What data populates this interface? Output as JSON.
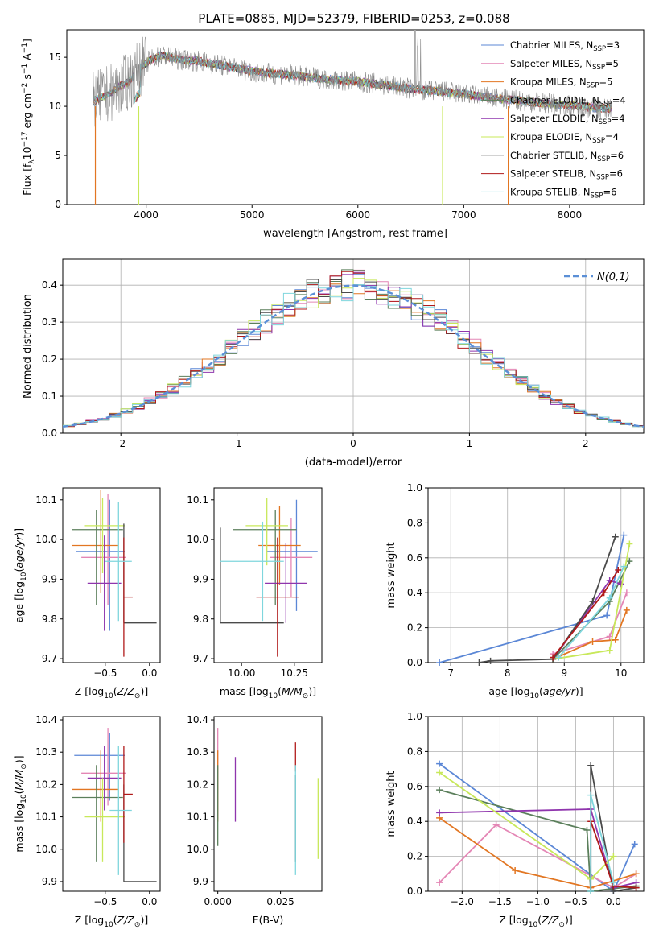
{
  "figure_title": "PLATE=0885, MJD=52379, FIBERID=0253, z=0.088",
  "colors": {
    "chabrier_miles": "#5b87d6",
    "salpeter_miles": "#e486b5",
    "kroupa_miles": "#e27622",
    "chabrier_elodie": "#5b7f5b",
    "salpeter_elodie": "#8f35ad",
    "kroupa_elodie": "#c8e85a",
    "chabrier_stelib": "#4a4a4a",
    "salpeter_stelib": "#b01a1a",
    "kroupa_stelib": "#7fd6dd",
    "data": "#888888",
    "normal": "#5b8fd6"
  },
  "chart_data": [
    {
      "id": "spectrum",
      "type": "line",
      "title": "PLATE=0885, MJD=52379, FIBERID=0253, z=0.088",
      "xlabel": "wavelength [Angstrom, rest frame]",
      "ylabel": "Flux [f_λ 10^-17 erg cm^-2 s^-1 A^-1]",
      "xlim": [
        3250,
        8700
      ],
      "ylim": [
        0,
        17.8
      ],
      "xticks": [
        4000,
        5000,
        6000,
        7000,
        8000
      ],
      "yticks": [
        0,
        5,
        10,
        15
      ],
      "legend_position": "top-right",
      "continuum": {
        "x": [
          3500,
          3600,
          3750,
          3850,
          3950,
          4050,
          4150,
          4300,
          4500,
          4700,
          4900,
          5100,
          5300,
          5500,
          5700,
          5900,
          6100,
          6300,
          6500,
          6700,
          6900,
          7100,
          7300,
          7500,
          7700,
          7900,
          8100,
          8300
        ],
        "y": [
          10.5,
          11.0,
          12.0,
          12.6,
          14.0,
          14.8,
          15.2,
          14.8,
          14.6,
          14.2,
          13.8,
          13.4,
          13.3,
          13.0,
          12.8,
          12.6,
          12.4,
          12.1,
          11.8,
          11.6,
          11.4,
          11.1,
          10.8,
          10.6,
          10.4,
          10.2,
          10.0,
          9.8
        ]
      },
      "legend": [
        {
          "key": "chabrier_miles",
          "label": "Chabrier MILES, N",
          "sub": "SSP",
          "count": "=3"
        },
        {
          "key": "salpeter_miles",
          "label": "Salpeter MILES, N",
          "sub": "SSP",
          "count": "=5"
        },
        {
          "key": "kroupa_miles",
          "label": "Kroupa MILES, N",
          "sub": "SSP",
          "count": "=5"
        },
        {
          "key": "chabrier_elodie",
          "label": "Chabrier ELODIE, N",
          "sub": "SSP",
          "count": "=4"
        },
        {
          "key": "salpeter_elodie",
          "label": "Salpeter ELODIE, N",
          "sub": "SSP",
          "count": "=4"
        },
        {
          "key": "kroupa_elodie",
          "label": "Kroupa ELODIE, N",
          "sub": "SSP",
          "count": "=4"
        },
        {
          "key": "chabrier_stelib",
          "label": "Chabrier STELIB, N",
          "sub": "SSP",
          "count": "=6"
        },
        {
          "key": "salpeter_stelib",
          "label": "Salpeter STELIB, N",
          "sub": "SSP",
          "count": "=6"
        },
        {
          "key": "kroupa_stelib",
          "label": "Kroupa STELIB, N",
          "sub": "SSP",
          "count": "=6"
        }
      ]
    },
    {
      "id": "residuals",
      "type": "histogram",
      "xlabel": "(data-model)/error",
      "ylabel": "Normed distribution",
      "xlim": [
        -2.5,
        2.5
      ],
      "ylim": [
        0,
        0.47
      ],
      "xticks": [
        -2,
        -1,
        0,
        1,
        2
      ],
      "yticks": [
        0.0,
        0.1,
        0.2,
        0.3,
        0.4
      ],
      "grid": true,
      "legend_label": "N(0,1)",
      "legend_position": "top-right",
      "bin_width": 0.1,
      "series_order": [
        "chabrier_miles",
        "salpeter_miles",
        "kroupa_miles",
        "chabrier_elodie",
        "salpeter_elodie",
        "kroupa_elodie",
        "chabrier_stelib",
        "salpeter_stelib",
        "kroupa_stelib"
      ]
    },
    {
      "id": "age_vs_Z",
      "type": "errorbar",
      "xlabel": "Z [log10(Z/Z⊙)]",
      "ylabel": "age  [log10(age/yr)]",
      "xlim": [
        -0.98,
        0.12
      ],
      "ylim": [
        9.69,
        10.13
      ],
      "xticks": [
        -0.5,
        0.0
      ],
      "xtick_labels": [
        "−0.5",
        "0.0"
      ],
      "yticks": [
        9.7,
        9.8,
        9.9,
        10.0,
        10.1
      ],
      "points": [
        {
          "key": "chabrier_miles",
          "x": -0.45,
          "xerr": [
            0.38,
            0.17
          ],
          "y": 9.97,
          "yerr": [
            0.2,
            0.13
          ]
        },
        {
          "key": "salpeter_miles",
          "x": -0.47,
          "xerr": [
            0.3,
            0.2
          ],
          "y": 9.955,
          "yerr": [
            0.12,
            0.16
          ]
        },
        {
          "key": "kroupa_miles",
          "x": -0.55,
          "xerr": [
            0.33,
            0.2
          ],
          "y": 9.985,
          "yerr": [
            0.12,
            0.14
          ]
        },
        {
          "key": "chabrier_elodie",
          "x": -0.6,
          "xerr": [
            0.28,
            0.3
          ],
          "y": 10.025,
          "yerr": [
            0.19,
            0.05
          ]
        },
        {
          "key": "salpeter_elodie",
          "x": -0.51,
          "xerr": [
            0.19,
            0.19
          ],
          "y": 9.89,
          "yerr": [
            0.12,
            0.12
          ]
        },
        {
          "key": "kroupa_elodie",
          "x": -0.53,
          "xerr": [
            0.2,
            0.25
          ],
          "y": 10.035,
          "yerr": [
            0.12,
            0.07
          ]
        },
        {
          "key": "chabrier_stelib",
          "x": -0.29,
          "xerr": [
            0.0,
            0.37
          ],
          "y": 9.79,
          "yerr": [
            0.0,
            0.25
          ]
        },
        {
          "key": "salpeter_stelib",
          "x": -0.29,
          "xerr": [
            0.0,
            0.1
          ],
          "y": 9.855,
          "yerr": [
            0.15,
            0.15
          ]
        },
        {
          "key": "kroupa_stelib",
          "x": -0.35,
          "xerr": [
            0.15,
            0.15
          ],
          "y": 9.945,
          "yerr": [
            0.15,
            0.15
          ]
        }
      ]
    },
    {
      "id": "age_vs_mass",
      "type": "errorbar",
      "xlabel": "mass [log10(M/M⊙)]",
      "ylabel": "",
      "xlim": [
        9.87,
        10.38
      ],
      "ylim": [
        9.69,
        10.13
      ],
      "xticks": [
        10.0,
        10.25
      ],
      "xtick_labels": [
        "10.00",
        "10.25"
      ],
      "yticks": [
        9.7,
        9.8,
        9.9,
        10.0,
        10.1
      ],
      "points": [
        {
          "key": "chabrier_miles",
          "x": 10.26,
          "xerr": [
            0.14,
            0.1
          ],
          "y": 9.97,
          "yerr": [
            0.15,
            0.13
          ]
        },
        {
          "key": "salpeter_miles",
          "x": 10.235,
          "xerr": [
            0.1,
            0.1
          ],
          "y": 9.955,
          "yerr": [
            0.1,
            0.1
          ]
        },
        {
          "key": "kroupa_miles",
          "x": 10.18,
          "xerr": [
            0.1,
            0.1
          ],
          "y": 9.985,
          "yerr": [
            0.1,
            0.1
          ]
        },
        {
          "key": "chabrier_elodie",
          "x": 10.16,
          "xerr": [
            0.2,
            0.1
          ],
          "y": 10.025,
          "yerr": [
            0.19,
            0.05
          ]
        },
        {
          "key": "salpeter_elodie",
          "x": 10.21,
          "xerr": [
            0.1,
            0.1
          ],
          "y": 9.89,
          "yerr": [
            0.1,
            0.1
          ]
        },
        {
          "key": "kroupa_elodie",
          "x": 10.12,
          "xerr": [
            0.1,
            0.1
          ],
          "y": 10.035,
          "yerr": [
            0.1,
            0.07
          ]
        },
        {
          "key": "chabrier_stelib",
          "x": 9.9,
          "xerr": [
            0.0,
            0.3
          ],
          "y": 9.79,
          "yerr": [
            0.0,
            0.24
          ]
        },
        {
          "key": "salpeter_stelib",
          "x": 10.17,
          "xerr": [
            0.1,
            0.1
          ],
          "y": 9.855,
          "yerr": [
            0.15,
            0.15
          ]
        },
        {
          "key": "kroupa_stelib",
          "x": 10.1,
          "xerr": [
            0.2,
            0.1
          ],
          "y": 9.945,
          "yerr": [
            0.15,
            0.1
          ]
        }
      ]
    },
    {
      "id": "massweight_vs_age",
      "type": "line",
      "xlabel": "age  [log10(age/yr)]",
      "ylabel": "mass weight",
      "xlim": [
        6.6,
        10.4
      ],
      "ylim": [
        0.0,
        1.0
      ],
      "xticks": [
        7,
        8,
        9,
        10
      ],
      "yticks": [
        0.0,
        0.2,
        0.4,
        0.6,
        0.8,
        1.0
      ],
      "grid": true,
      "series": [
        {
          "key": "chabrier_miles",
          "x": [
            6.8,
            9.75,
            10.05
          ],
          "y": [
            0.0,
            0.27,
            0.73
          ]
        },
        {
          "key": "salpeter_miles",
          "x": [
            8.8,
            9.8,
            10.1
          ],
          "y": [
            0.05,
            0.15,
            0.4
          ]
        },
        {
          "key": "kroupa_miles",
          "x": [
            8.8,
            9.5,
            9.9,
            10.1
          ],
          "y": [
            0.02,
            0.12,
            0.13,
            0.3
          ]
        },
        {
          "key": "chabrier_elodie",
          "x": [
            8.8,
            9.8,
            10.15
          ],
          "y": [
            0.02,
            0.35,
            0.58
          ]
        },
        {
          "key": "salpeter_elodie",
          "x": [
            8.8,
            9.8,
            10.0
          ],
          "y": [
            0.02,
            0.47,
            0.45
          ]
        },
        {
          "key": "kroupa_elodie",
          "x": [
            8.8,
            9.8,
            10.15
          ],
          "y": [
            0.02,
            0.07,
            0.68
          ]
        },
        {
          "key": "chabrier_stelib",
          "x": [
            7.5,
            7.7,
            8.8,
            9.5,
            9.9
          ],
          "y": [
            0.0,
            0.01,
            0.02,
            0.35,
            0.72
          ]
        },
        {
          "key": "salpeter_stelib",
          "x": [
            8.8,
            9.7,
            9.95
          ],
          "y": [
            0.03,
            0.4,
            0.53
          ]
        },
        {
          "key": "kroupa_stelib",
          "x": [
            8.9,
            9.8,
            10.05
          ],
          "y": [
            0.03,
            0.37,
            0.55
          ]
        }
      ]
    },
    {
      "id": "mass_vs_Z",
      "type": "errorbar",
      "xlabel": "Z [log10(Z/Z⊙)]",
      "ylabel": "mass [log10(M/M⊙)]",
      "xlim": [
        -0.98,
        0.12
      ],
      "ylim": [
        9.87,
        10.41
      ],
      "xticks": [
        -0.5,
        0.0
      ],
      "xtick_labels": [
        "−0.5",
        "0.0"
      ],
      "yticks": [
        9.9,
        10.0,
        10.1,
        10.2,
        10.3,
        10.4
      ],
      "points": [
        {
          "key": "chabrier_miles",
          "x": -0.45,
          "xerr": [
            0.4,
            0.17
          ],
          "y": 10.29,
          "yerr": [
            0.14,
            0.07
          ]
        },
        {
          "key": "salpeter_miles",
          "x": -0.47,
          "xerr": [
            0.3,
            0.2
          ],
          "y": 10.235,
          "yerr": [
            0.1,
            0.14
          ]
        },
        {
          "key": "kroupa_miles",
          "x": -0.55,
          "xerr": [
            0.33,
            0.2
          ],
          "y": 10.185,
          "yerr": [
            0.1,
            0.12
          ]
        },
        {
          "key": "chabrier_elodie",
          "x": -0.6,
          "xerr": [
            0.28,
            0.3
          ],
          "y": 10.16,
          "yerr": [
            0.2,
            0.1
          ]
        },
        {
          "key": "salpeter_elodie",
          "x": -0.51,
          "xerr": [
            0.19,
            0.19
          ],
          "y": 10.22,
          "yerr": [
            0.1,
            0.1
          ]
        },
        {
          "key": "kroupa_elodie",
          "x": -0.53,
          "xerr": [
            0.2,
            0.25
          ],
          "y": 10.1,
          "yerr": [
            0.14,
            0.12
          ]
        },
        {
          "key": "chabrier_stelib",
          "x": -0.29,
          "xerr": [
            0.0,
            0.37
          ],
          "y": 9.9,
          "yerr": [
            0.0,
            0.3
          ]
        },
        {
          "key": "salpeter_stelib",
          "x": -0.29,
          "xerr": [
            0.0,
            0.1
          ],
          "y": 10.17,
          "yerr": [
            0.15,
            0.15
          ]
        },
        {
          "key": "kroupa_stelib",
          "x": -0.35,
          "xerr": [
            0.1,
            0.15
          ],
          "y": 10.12,
          "yerr": [
            0.2,
            0.2
          ]
        }
      ]
    },
    {
      "id": "mass_vs_ebv",
      "type": "errorbar",
      "xlabel": "E(B-V)",
      "ylabel": "",
      "xlim": [
        -0.0015,
        0.0415
      ],
      "ylim": [
        9.87,
        10.41
      ],
      "xticks": [
        0.0,
        0.025
      ],
      "xtick_labels": [
        "0.000",
        "0.025"
      ],
      "yticks": [
        9.9,
        10.0,
        10.1,
        10.2,
        10.3,
        10.4
      ],
      "points": [
        {
          "key": "salpeter_miles",
          "x": 0.0,
          "y": 10.235,
          "yerr": [
            0.14,
            0.14
          ]
        },
        {
          "key": "kroupa_miles",
          "x": 0.0,
          "y": 10.185,
          "yerr": [
            0.1,
            0.12
          ]
        },
        {
          "key": "chabrier_elodie",
          "x": 0.0,
          "y": 10.16,
          "yerr": [
            0.15,
            0.1
          ]
        },
        {
          "key": "salpeter_elodie",
          "x": 0.007,
          "y": 10.185,
          "yerr": [
            0.1,
            0.1
          ]
        },
        {
          "key": "kroupa_elodie",
          "x": 0.04,
          "y": 10.12,
          "yerr": [
            0.15,
            0.1
          ]
        },
        {
          "key": "chabrier_stelib",
          "x": 0.031,
          "y": 10.1,
          "yerr": [
            0.14,
            0.13
          ]
        },
        {
          "key": "salpeter_stelib",
          "x": 0.031,
          "y": 10.24,
          "yerr": [
            0.0,
            0.09
          ]
        },
        {
          "key": "kroupa_stelib",
          "x": 0.031,
          "y": 10.12,
          "yerr": [
            0.2,
            0.14
          ]
        }
      ]
    },
    {
      "id": "massweight_vs_Z",
      "type": "line",
      "xlabel": "Z [log10(Z/Z⊙)]",
      "ylabel": "mass weight",
      "xlim": [
        -2.45,
        0.4
      ],
      "ylim": [
        0.0,
        1.0
      ],
      "xticks": [
        -2.0,
        -1.5,
        -1.0,
        -0.5,
        0.0
      ],
      "xtick_labels": [
        "−2.0",
        "−1.5",
        "−1.0",
        "−0.5",
        "0.0"
      ],
      "yticks": [
        0.0,
        0.2,
        0.4,
        0.6,
        0.8,
        1.0
      ],
      "grid": true,
      "series": [
        {
          "key": "chabrier_miles",
          "x": [
            -2.3,
            0.0,
            0.28
          ],
          "y": [
            0.73,
            0.0,
            0.27
          ]
        },
        {
          "key": "salpeter_miles",
          "x": [
            -2.3,
            -1.55,
            0.0,
            0.3
          ],
          "y": [
            0.05,
            0.38,
            0.02,
            0.1
          ]
        },
        {
          "key": "kroupa_miles",
          "x": [
            -2.3,
            -1.3,
            -0.3,
            0.3
          ],
          "y": [
            0.42,
            0.12,
            0.02,
            0.1
          ]
        },
        {
          "key": "chabrier_elodie",
          "x": [
            -2.3,
            -0.35,
            -0.3,
            0.3
          ],
          "y": [
            0.58,
            0.35,
            0.0,
            0.03
          ]
        },
        {
          "key": "salpeter_elodie",
          "x": [
            -2.3,
            -0.3,
            0.0,
            0.3
          ],
          "y": [
            0.45,
            0.47,
            0.02,
            0.05
          ]
        },
        {
          "key": "kroupa_elodie",
          "x": [
            -2.3,
            -0.3,
            0.0
          ],
          "y": [
            0.68,
            0.07,
            0.2
          ]
        },
        {
          "key": "chabrier_stelib",
          "x": [
            -0.3,
            -0.3,
            0.0,
            0.3
          ],
          "y": [
            0.0,
            0.72,
            0.0,
            0.02
          ]
        },
        {
          "key": "salpeter_stelib",
          "x": [
            -0.3,
            0.0,
            0.3
          ],
          "y": [
            0.4,
            0.03,
            0.02
          ]
        },
        {
          "key": "kroupa_stelib",
          "x": [
            -0.3,
            -0.3,
            0.0
          ],
          "y": [
            0.0,
            0.55,
            0.05
          ]
        }
      ]
    }
  ]
}
